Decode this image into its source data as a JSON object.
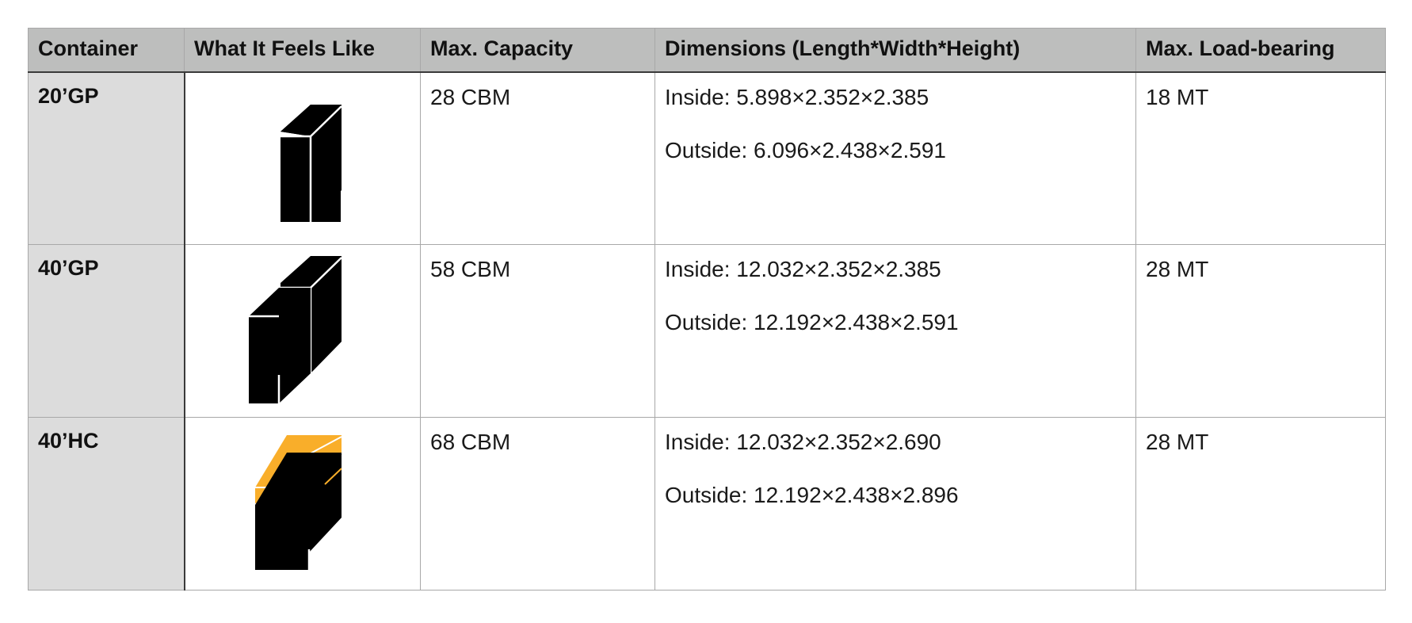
{
  "table": {
    "headers": [
      "Container",
      "What It Feels Like",
      "Max. Capacity",
      "Dimensions (Length*Width*Height)",
      "Max. Load-bearing"
    ],
    "rows": [
      {
        "container": "20’GP",
        "icon": "single-cube-icon",
        "capacity": "28 CBM",
        "inside": "Inside: 5.898×2.352×2.385",
        "outside": "Outside: 6.096×2.438×2.591",
        "load": "18 MT"
      },
      {
        "container": "40’GP",
        "icon": "double-cube-icon",
        "capacity": "58 CBM",
        "inside": "Inside: 12.032×2.352×2.385",
        "outside": "Outside: 12.192×2.438×2.591",
        "load": "28 MT"
      },
      {
        "container": "40’HC",
        "icon": "high-cube-icon",
        "capacity": "68 CBM",
        "inside": "Inside: 12.032×2.352×2.690",
        "outside": "Outside: 12.192×2.438×2.896",
        "load": "28 MT"
      }
    ]
  },
  "colors": {
    "header_bg": "#bdbebd",
    "name_col_bg": "#dcdcdc",
    "cube_fill": "#000000",
    "high_cube_accent": "#f9ae2a"
  }
}
